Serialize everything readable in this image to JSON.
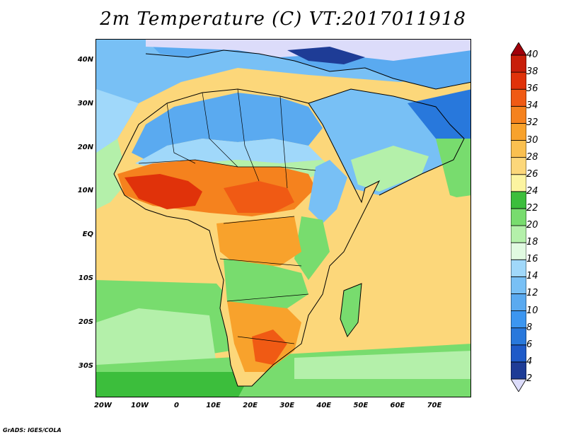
{
  "title": "2m Temperature (C) VT:2017011918",
  "credit": "GrADS: IGES/COLA",
  "map": {
    "lon_range": [
      -22,
      80
    ],
    "lat_range": [
      -37,
      45
    ],
    "y_labels": [
      {
        "lat": 40,
        "text": "40N"
      },
      {
        "lat": 30,
        "text": "30N"
      },
      {
        "lat": 20,
        "text": "20N"
      },
      {
        "lat": 10,
        "text": "10N"
      },
      {
        "lat": 0,
        "text": "EQ"
      },
      {
        "lat": -10,
        "text": "10S"
      },
      {
        "lat": -20,
        "text": "20S"
      },
      {
        "lat": -30,
        "text": "30S"
      }
    ],
    "x_labels": [
      {
        "lon": -20,
        "text": "20W"
      },
      {
        "lon": -10,
        "text": "10W"
      },
      {
        "lon": 0,
        "text": "0"
      },
      {
        "lon": 10,
        "text": "10E"
      },
      {
        "lon": 20,
        "text": "20E"
      },
      {
        "lon": 30,
        "text": "30E"
      },
      {
        "lon": 40,
        "text": "40E"
      },
      {
        "lon": 50,
        "text": "50E"
      },
      {
        "lon": 60,
        "text": "60E"
      },
      {
        "lon": 70,
        "text": "70E"
      }
    ]
  },
  "colorbar": {
    "levels": [
      "2",
      "4",
      "6",
      "8",
      "10",
      "12",
      "14",
      "16",
      "18",
      "20",
      "22",
      "24",
      "26",
      "28",
      "30",
      "32",
      "34",
      "36",
      "38",
      "40"
    ],
    "colors": [
      "#dcdcfa",
      "#1e3c96",
      "#1e5ac8",
      "#2878dc",
      "#3c96f0",
      "#5aaaf0",
      "#78c0f5",
      "#a0d8fa",
      "#e1fae1",
      "#b4f0aa",
      "#78dc6e",
      "#3cbe3c",
      "#fcf4a0",
      "#fcd77a",
      "#fac050",
      "#f8a22c",
      "#f5821e",
      "#f05a14",
      "#e0320a",
      "#c81e0a",
      "#a0000a"
    ]
  }
}
